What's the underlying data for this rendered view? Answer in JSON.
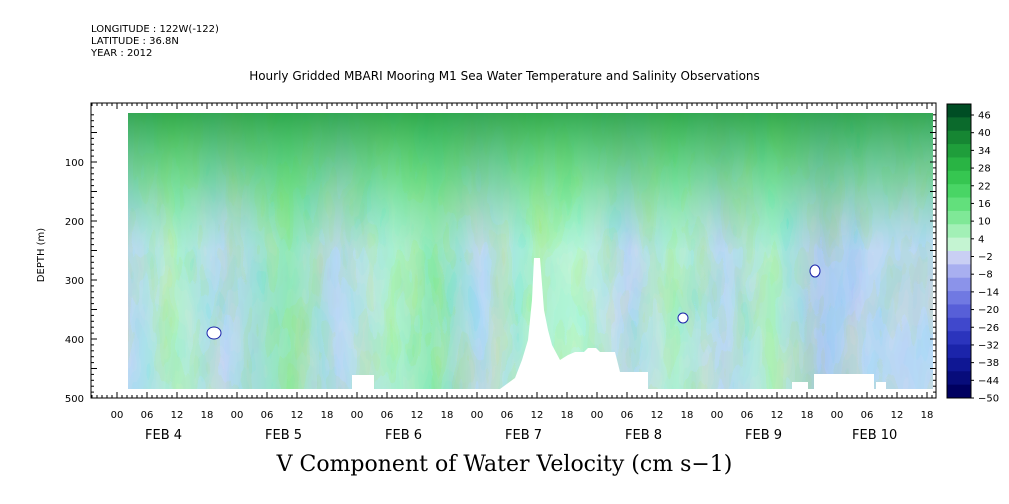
{
  "header": {
    "longitude": "LONGITUDE : 122W(-122)",
    "latitude": "LATITUDE : 36.8N",
    "year": "YEAR : 2012"
  },
  "chart_data": {
    "type": "heatmap",
    "title": "Hourly Gridded MBARI Mooring M1 Sea Water Temperature and Salinity Observations",
    "footer_title": "V Component of Water Velocity (cm s−1)",
    "ylabel": "DEPTH (m)",
    "ylim": [
      500,
      0
    ],
    "y_ticks": [
      "100",
      "200",
      "300",
      "400",
      "500"
    ],
    "x_tick_labels": [
      "00",
      "06",
      "12",
      "18",
      "00",
      "06",
      "12",
      "18",
      "00",
      "06",
      "12",
      "18",
      "00",
      "06",
      "12",
      "18",
      "00",
      "06",
      "12",
      "18",
      "00",
      "06",
      "12",
      "18",
      "00",
      "06",
      "12",
      "18"
    ],
    "date_labels": [
      "FEB  4",
      "FEB  5",
      "FEB  6",
      "FEB  7",
      "FEB  8",
      "FEB  9",
      "FEB 10"
    ],
    "colorbar": {
      "labels": [
        "46",
        "40",
        "34",
        "28",
        "22",
        "16",
        "10",
        "4",
        "−2",
        "−8",
        "−14",
        "−20",
        "−26",
        "−32",
        "−38",
        "−44",
        "−50"
      ],
      "colors": [
        "#004d24",
        "#0b6a2c",
        "#168633",
        "#1f9e3b",
        "#29b444",
        "#36c651",
        "#49d565",
        "#62e07c",
        "#7fe897",
        "#a2f0b6",
        "#c4f4d2",
        "#c9cff4",
        "#a8aff0",
        "#8b93ea",
        "#7079e2",
        "#575fd8",
        "#4048cc",
        "#2b34bd",
        "#1b24aa",
        "#0f1794",
        "#070c7b",
        "#000060"
      ]
    }
  }
}
